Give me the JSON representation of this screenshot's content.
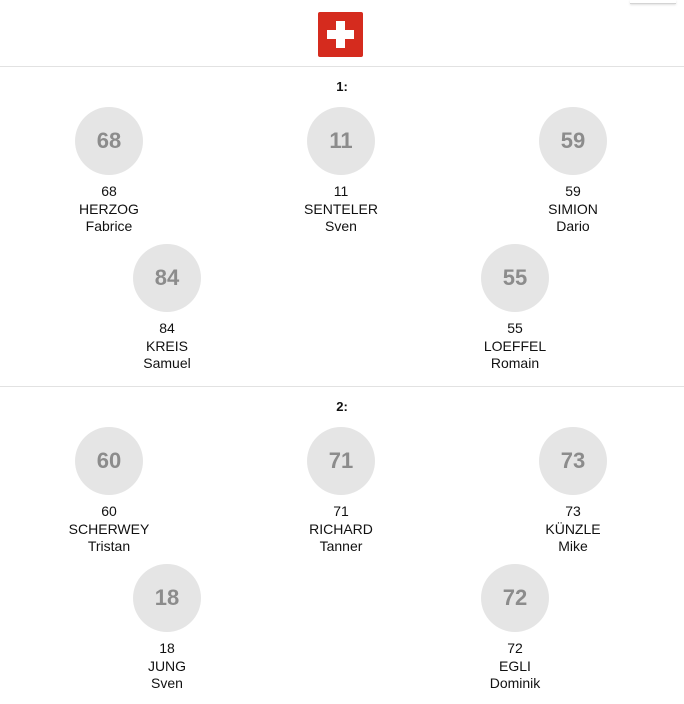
{
  "team": {
    "flag_icon": "swiss-flag",
    "flag_color": "#d52b1e"
  },
  "lines": [
    {
      "label": "1:",
      "players": [
        {
          "number": "68",
          "last_name": "HERZOG",
          "first_name": "Fabrice"
        },
        {
          "number": "11",
          "last_name": "SENTELER",
          "first_name": "Sven"
        },
        {
          "number": "59",
          "last_name": "SIMION",
          "first_name": "Dario"
        },
        {
          "number": "84",
          "last_name": "KREIS",
          "first_name": "Samuel"
        },
        {
          "number": "55",
          "last_name": "LOEFFEL",
          "first_name": "Romain"
        }
      ]
    },
    {
      "label": "2:",
      "players": [
        {
          "number": "60",
          "last_name": "SCHERWEY",
          "first_name": "Tristan"
        },
        {
          "number": "71",
          "last_name": "RICHARD",
          "first_name": "Tanner"
        },
        {
          "number": "73",
          "last_name": "KÜNZLE",
          "first_name": "Mike"
        },
        {
          "number": "18",
          "last_name": "JUNG",
          "first_name": "Sven"
        },
        {
          "number": "72",
          "last_name": "EGLI",
          "first_name": "Dominik"
        }
      ]
    }
  ]
}
